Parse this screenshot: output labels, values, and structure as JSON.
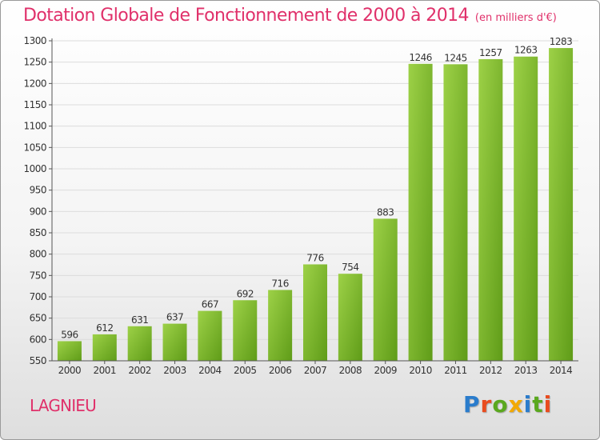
{
  "header": {
    "title": "Dotation Globale de Fonctionnement de 2000 à 2014",
    "subtitle": "(en milliers d'€)"
  },
  "footer": {
    "commune": "LAGNIEU",
    "logo_text": "Proxiti"
  },
  "colors": {
    "accent": "#e0306a",
    "bar_light": "#9dd147",
    "bar_dark": "#5f9c18",
    "logo_letters": [
      "#2a7ccc",
      "#e94b1e",
      "#5aa81e",
      "#f2a900",
      "#2a7ccc",
      "#5aa81e",
      "#e94b1e"
    ]
  },
  "chart_data": {
    "type": "bar",
    "categories": [
      "2000",
      "2001",
      "2002",
      "2003",
      "2004",
      "2005",
      "2006",
      "2007",
      "2008",
      "2009",
      "2010",
      "2011",
      "2012",
      "2013",
      "2014"
    ],
    "values": [
      596,
      612,
      631,
      637,
      667,
      692,
      716,
      776,
      754,
      883,
      1246,
      1245,
      1257,
      1263,
      1283
    ],
    "data_labels": [
      "596",
      "612",
      "631",
      "637",
      "667",
      "692",
      "716",
      "776",
      "754",
      "883",
      "1246",
      "1245",
      "1257",
      "1263",
      "1283"
    ],
    "yticks": [
      "550",
      "600",
      "650",
      "700",
      "750",
      "800",
      "850",
      "900",
      "950",
      "1000",
      "1050",
      "1100",
      "1150",
      "1200",
      "1250",
      "1300"
    ],
    "title": "Dotation Globale de Fonctionnement de 2000 à 2014",
    "xlabel": "",
    "ylabel": "",
    "ylim": [
      550,
      1300
    ],
    "grid": true,
    "legend": "none"
  }
}
